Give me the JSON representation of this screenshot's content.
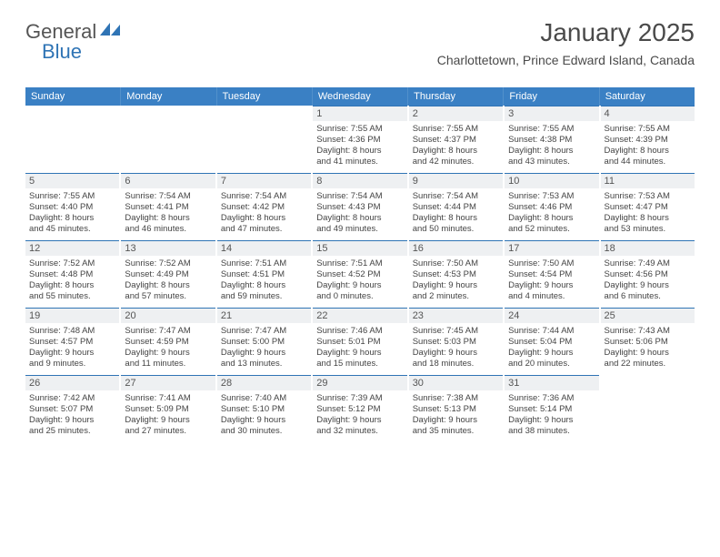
{
  "logo": {
    "text_general": "General",
    "text_blue": "Blue",
    "sail_color": "#2f74b5"
  },
  "header": {
    "month_title": "January 2025",
    "location": "Charlottetown, Prince Edward Island, Canada"
  },
  "calendar": {
    "header_bg": "#3a80c4",
    "daynum_bg": "#eef0f2",
    "border_color": "#2f74b5",
    "day_names": [
      "Sunday",
      "Monday",
      "Tuesday",
      "Wednesday",
      "Thursday",
      "Friday",
      "Saturday"
    ],
    "weeks": [
      [
        {
          "day": "",
          "lines": []
        },
        {
          "day": "",
          "lines": []
        },
        {
          "day": "",
          "lines": []
        },
        {
          "day": "1",
          "lines": [
            "Sunrise: 7:55 AM",
            "Sunset: 4:36 PM",
            "Daylight: 8 hours",
            "and 41 minutes."
          ]
        },
        {
          "day": "2",
          "lines": [
            "Sunrise: 7:55 AM",
            "Sunset: 4:37 PM",
            "Daylight: 8 hours",
            "and 42 minutes."
          ]
        },
        {
          "day": "3",
          "lines": [
            "Sunrise: 7:55 AM",
            "Sunset: 4:38 PM",
            "Daylight: 8 hours",
            "and 43 minutes."
          ]
        },
        {
          "day": "4",
          "lines": [
            "Sunrise: 7:55 AM",
            "Sunset: 4:39 PM",
            "Daylight: 8 hours",
            "and 44 minutes."
          ]
        }
      ],
      [
        {
          "day": "5",
          "lines": [
            "Sunrise: 7:55 AM",
            "Sunset: 4:40 PM",
            "Daylight: 8 hours",
            "and 45 minutes."
          ]
        },
        {
          "day": "6",
          "lines": [
            "Sunrise: 7:54 AM",
            "Sunset: 4:41 PM",
            "Daylight: 8 hours",
            "and 46 minutes."
          ]
        },
        {
          "day": "7",
          "lines": [
            "Sunrise: 7:54 AM",
            "Sunset: 4:42 PM",
            "Daylight: 8 hours",
            "and 47 minutes."
          ]
        },
        {
          "day": "8",
          "lines": [
            "Sunrise: 7:54 AM",
            "Sunset: 4:43 PM",
            "Daylight: 8 hours",
            "and 49 minutes."
          ]
        },
        {
          "day": "9",
          "lines": [
            "Sunrise: 7:54 AM",
            "Sunset: 4:44 PM",
            "Daylight: 8 hours",
            "and 50 minutes."
          ]
        },
        {
          "day": "10",
          "lines": [
            "Sunrise: 7:53 AM",
            "Sunset: 4:46 PM",
            "Daylight: 8 hours",
            "and 52 minutes."
          ]
        },
        {
          "day": "11",
          "lines": [
            "Sunrise: 7:53 AM",
            "Sunset: 4:47 PM",
            "Daylight: 8 hours",
            "and 53 minutes."
          ]
        }
      ],
      [
        {
          "day": "12",
          "lines": [
            "Sunrise: 7:52 AM",
            "Sunset: 4:48 PM",
            "Daylight: 8 hours",
            "and 55 minutes."
          ]
        },
        {
          "day": "13",
          "lines": [
            "Sunrise: 7:52 AM",
            "Sunset: 4:49 PM",
            "Daylight: 8 hours",
            "and 57 minutes."
          ]
        },
        {
          "day": "14",
          "lines": [
            "Sunrise: 7:51 AM",
            "Sunset: 4:51 PM",
            "Daylight: 8 hours",
            "and 59 minutes."
          ]
        },
        {
          "day": "15",
          "lines": [
            "Sunrise: 7:51 AM",
            "Sunset: 4:52 PM",
            "Daylight: 9 hours",
            "and 0 minutes."
          ]
        },
        {
          "day": "16",
          "lines": [
            "Sunrise: 7:50 AM",
            "Sunset: 4:53 PM",
            "Daylight: 9 hours",
            "and 2 minutes."
          ]
        },
        {
          "day": "17",
          "lines": [
            "Sunrise: 7:50 AM",
            "Sunset: 4:54 PM",
            "Daylight: 9 hours",
            "and 4 minutes."
          ]
        },
        {
          "day": "18",
          "lines": [
            "Sunrise: 7:49 AM",
            "Sunset: 4:56 PM",
            "Daylight: 9 hours",
            "and 6 minutes."
          ]
        }
      ],
      [
        {
          "day": "19",
          "lines": [
            "Sunrise: 7:48 AM",
            "Sunset: 4:57 PM",
            "Daylight: 9 hours",
            "and 9 minutes."
          ]
        },
        {
          "day": "20",
          "lines": [
            "Sunrise: 7:47 AM",
            "Sunset: 4:59 PM",
            "Daylight: 9 hours",
            "and 11 minutes."
          ]
        },
        {
          "day": "21",
          "lines": [
            "Sunrise: 7:47 AM",
            "Sunset: 5:00 PM",
            "Daylight: 9 hours",
            "and 13 minutes."
          ]
        },
        {
          "day": "22",
          "lines": [
            "Sunrise: 7:46 AM",
            "Sunset: 5:01 PM",
            "Daylight: 9 hours",
            "and 15 minutes."
          ]
        },
        {
          "day": "23",
          "lines": [
            "Sunrise: 7:45 AM",
            "Sunset: 5:03 PM",
            "Daylight: 9 hours",
            "and 18 minutes."
          ]
        },
        {
          "day": "24",
          "lines": [
            "Sunrise: 7:44 AM",
            "Sunset: 5:04 PM",
            "Daylight: 9 hours",
            "and 20 minutes."
          ]
        },
        {
          "day": "25",
          "lines": [
            "Sunrise: 7:43 AM",
            "Sunset: 5:06 PM",
            "Daylight: 9 hours",
            "and 22 minutes."
          ]
        }
      ],
      [
        {
          "day": "26",
          "lines": [
            "Sunrise: 7:42 AM",
            "Sunset: 5:07 PM",
            "Daylight: 9 hours",
            "and 25 minutes."
          ]
        },
        {
          "day": "27",
          "lines": [
            "Sunrise: 7:41 AM",
            "Sunset: 5:09 PM",
            "Daylight: 9 hours",
            "and 27 minutes."
          ]
        },
        {
          "day": "28",
          "lines": [
            "Sunrise: 7:40 AM",
            "Sunset: 5:10 PM",
            "Daylight: 9 hours",
            "and 30 minutes."
          ]
        },
        {
          "day": "29",
          "lines": [
            "Sunrise: 7:39 AM",
            "Sunset: 5:12 PM",
            "Daylight: 9 hours",
            "and 32 minutes."
          ]
        },
        {
          "day": "30",
          "lines": [
            "Sunrise: 7:38 AM",
            "Sunset: 5:13 PM",
            "Daylight: 9 hours",
            "and 35 minutes."
          ]
        },
        {
          "day": "31",
          "lines": [
            "Sunrise: 7:36 AM",
            "Sunset: 5:14 PM",
            "Daylight: 9 hours",
            "and 38 minutes."
          ]
        },
        {
          "day": "",
          "lines": []
        }
      ]
    ]
  }
}
